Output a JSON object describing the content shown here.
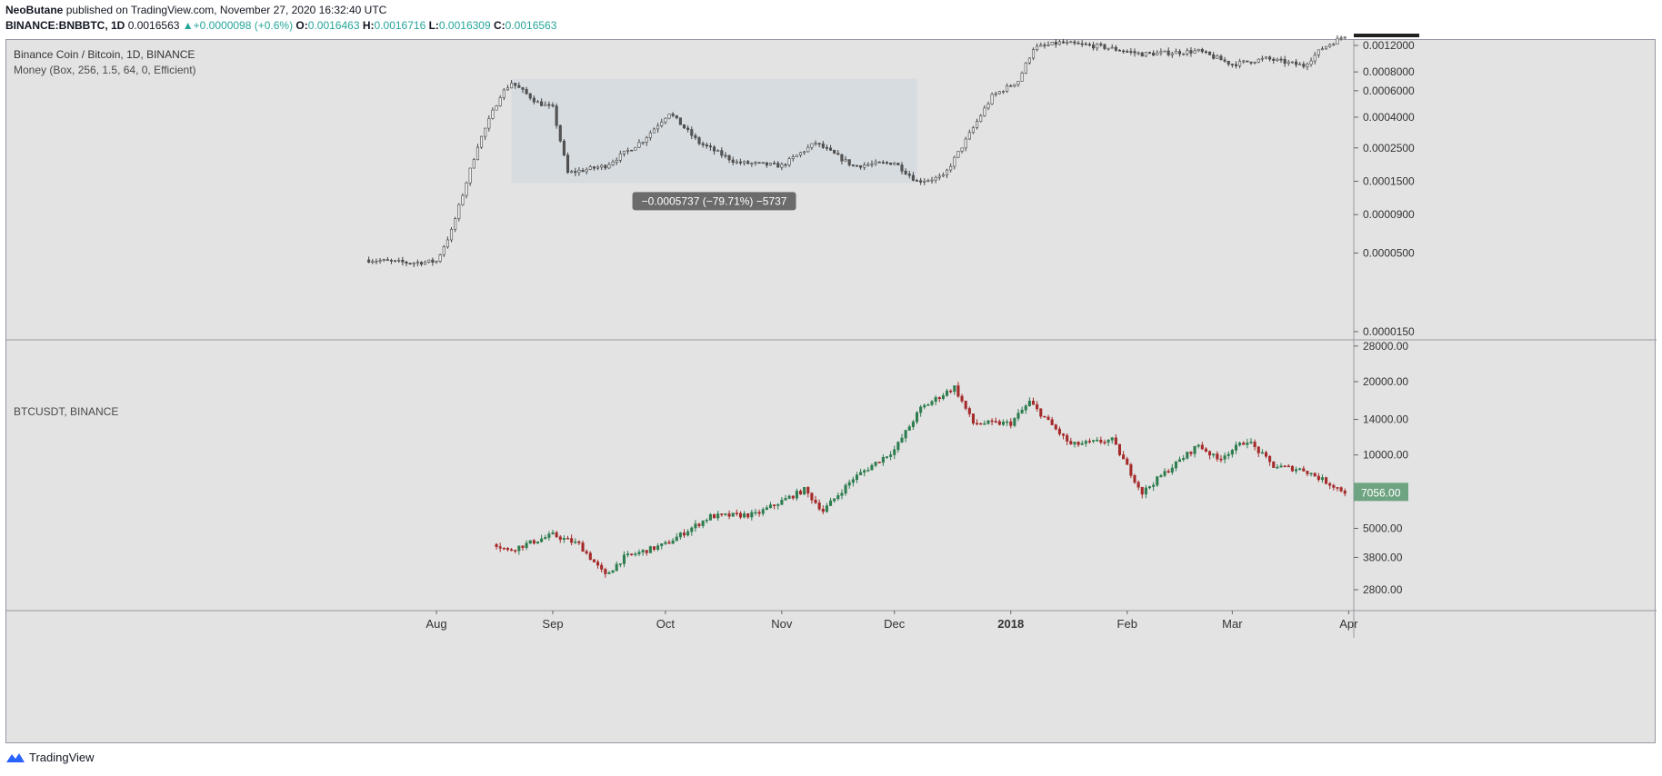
{
  "header": {
    "author": "NeoButane",
    "published": "published on TradingView.com, November 27, 2020 16:32:40 UTC",
    "symbol": "BINANCE:BNBBTC, 1D",
    "last": "0.0016563",
    "change": "+0.0000098 (+0.6%)",
    "o_label": "O:",
    "o": "0.0016463",
    "h_label": "H:",
    "h": "0.0016716",
    "l_label": "L:",
    "l": "0.0016309",
    "c_label": "C:",
    "c": "0.0016563"
  },
  "top_pane": {
    "title": "Binance Coin / Bitcoin, 1D, BINANCE",
    "indicator": "Money (Box, 256, 1.5, 64, 0, Efficient)",
    "measure_label": "−0.0005737 (−79.71%) −5737"
  },
  "bottom_pane": {
    "title": "BTCUSDT, BINANCE",
    "last_price_label": "7056.00"
  },
  "footer": {
    "brand": "TradingView"
  },
  "colors": {
    "up": "#26a69a",
    "btc_up": "#2e7d4f",
    "btc_down": "#a52a2a",
    "bnb": "#5a5a5a",
    "badge": "#6fa483",
    "measure_box": "#d5dadf"
  },
  "chart_data": [
    {
      "type": "candlestick",
      "title": "Binance Coin / Bitcoin, 1D, BINANCE",
      "scale": "log",
      "y_ticks": [
        "0.0012000",
        "0.0008000",
        "0.0006000",
        "0.0004000",
        "0.0002500",
        "0.0001500",
        "0.0000900",
        "0.0000500",
        "0.0000150"
      ],
      "x_ticks": [
        "Aug",
        "Sep",
        "Oct",
        "Nov",
        "Dec",
        "2018",
        "Feb",
        "Mar",
        "Apr"
      ],
      "measure": {
        "from_date": "2017-08-21",
        "to_date": "2017-12-07",
        "high": 0.00072,
        "low": 0.000146,
        "change": "−0.0005737 (−79.71%) −5737"
      },
      "keypoints": [
        {
          "date": "2017-07-14",
          "value": 4.5e-05
        },
        {
          "date": "2017-07-25",
          "value": 4.3e-05
        },
        {
          "date": "2017-08-01",
          "value": 4.4e-05
        },
        {
          "date": "2017-08-05",
          "value": 7e-05
        },
        {
          "date": "2017-08-12",
          "value": 0.00026
        },
        {
          "date": "2017-08-18",
          "value": 0.00056
        },
        {
          "date": "2017-08-21",
          "value": 0.00068
        },
        {
          "date": "2017-08-28",
          "value": 0.0005
        },
        {
          "date": "2017-09-01",
          "value": 0.00046
        },
        {
          "date": "2017-09-05",
          "value": 0.00017
        },
        {
          "date": "2017-09-15",
          "value": 0.00019
        },
        {
          "date": "2017-09-25",
          "value": 0.00028
        },
        {
          "date": "2017-10-02",
          "value": 0.00043
        },
        {
          "date": "2017-10-10",
          "value": 0.00027
        },
        {
          "date": "2017-10-20",
          "value": 0.0002
        },
        {
          "date": "2017-11-01",
          "value": 0.00019
        },
        {
          "date": "2017-11-10",
          "value": 0.00027
        },
        {
          "date": "2017-11-20",
          "value": 0.00019
        },
        {
          "date": "2017-12-01",
          "value": 0.0002
        },
        {
          "date": "2017-12-07",
          "value": 0.00015
        },
        {
          "date": "2017-12-14",
          "value": 0.00016
        },
        {
          "date": "2017-12-20",
          "value": 0.00028
        },
        {
          "date": "2017-12-27",
          "value": 0.00055
        },
        {
          "date": "2018-01-03",
          "value": 0.0007
        },
        {
          "date": "2018-01-07",
          "value": 0.00115
        },
        {
          "date": "2018-01-14",
          "value": 0.00125
        },
        {
          "date": "2018-01-25",
          "value": 0.00118
        },
        {
          "date": "2018-02-05",
          "value": 0.00105
        },
        {
          "date": "2018-02-20",
          "value": 0.0011
        },
        {
          "date": "2018-03-01",
          "value": 0.0009
        },
        {
          "date": "2018-03-10",
          "value": 0.00098
        },
        {
          "date": "2018-03-20",
          "value": 0.00088
        },
        {
          "date": "2018-03-25",
          "value": 0.00115
        },
        {
          "date": "2018-03-31",
          "value": 0.0014
        }
      ]
    },
    {
      "type": "candlestick",
      "title": "BTCUSDT, BINANCE",
      "scale": "log",
      "y_ticks": [
        "28000.00",
        "20000.00",
        "14000.00",
        "10000.00",
        "7056.00",
        "5000.00",
        "3800.00",
        "2800.00"
      ],
      "last_value": 7056,
      "x_ticks": [
        "Aug",
        "Sep",
        "Oct",
        "Nov",
        "Dec",
        "2018",
        "Feb",
        "Mar",
        "Apr"
      ],
      "keypoints": [
        {
          "date": "2017-08-17",
          "value": 4300
        },
        {
          "date": "2017-08-20",
          "value": 4050
        },
        {
          "date": "2017-09-01",
          "value": 4700
        },
        {
          "date": "2017-09-08",
          "value": 4300
        },
        {
          "date": "2017-09-15",
          "value": 3200
        },
        {
          "date": "2017-09-20",
          "value": 3800
        },
        {
          "date": "2017-10-01",
          "value": 4300
        },
        {
          "date": "2017-10-13",
          "value": 5600
        },
        {
          "date": "2017-10-25",
          "value": 5700
        },
        {
          "date": "2017-11-07",
          "value": 7200
        },
        {
          "date": "2017-11-12",
          "value": 5900
        },
        {
          "date": "2017-11-20",
          "value": 8000
        },
        {
          "date": "2017-12-01",
          "value": 10500
        },
        {
          "date": "2017-12-08",
          "value": 15500
        },
        {
          "date": "2017-12-17",
          "value": 19000
        },
        {
          "date": "2017-12-22",
          "value": 13500
        },
        {
          "date": "2018-01-01",
          "value": 13500
        },
        {
          "date": "2018-01-06",
          "value": 16500
        },
        {
          "date": "2018-01-17",
          "value": 11000
        },
        {
          "date": "2018-01-28",
          "value": 11500
        },
        {
          "date": "2018-02-05",
          "value": 7000
        },
        {
          "date": "2018-02-10",
          "value": 8200
        },
        {
          "date": "2018-02-20",
          "value": 11000
        },
        {
          "date": "2018-02-25",
          "value": 9600
        },
        {
          "date": "2018-03-05",
          "value": 11500
        },
        {
          "date": "2018-03-12",
          "value": 9000
        },
        {
          "date": "2018-03-20",
          "value": 8700
        },
        {
          "date": "2018-03-31",
          "value": 7056
        }
      ]
    }
  ]
}
